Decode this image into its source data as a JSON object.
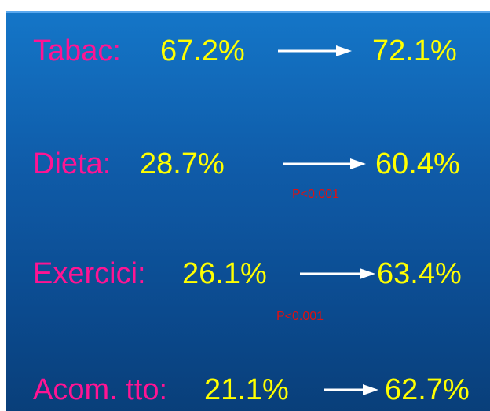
{
  "colors": {
    "background": "#0f5ba8",
    "label": "#ff1493",
    "value": "#ffff00",
    "arrow": "#ffffff",
    "pvalue": "#e01010"
  },
  "rows": [
    {
      "label": "Tabac:",
      "before": "67.2%",
      "after": "72.1%"
    },
    {
      "label": "Dieta:",
      "before": "28.7%",
      "after": "60.4%"
    },
    {
      "label": "Exercici:",
      "before": "26.1%",
      "after": "63.4%"
    },
    {
      "label": "Acom. tto:",
      "before": "21.1%",
      "after": "62.7%"
    }
  ],
  "pvalues": [
    "P<0.001",
    "P<0.001"
  ]
}
